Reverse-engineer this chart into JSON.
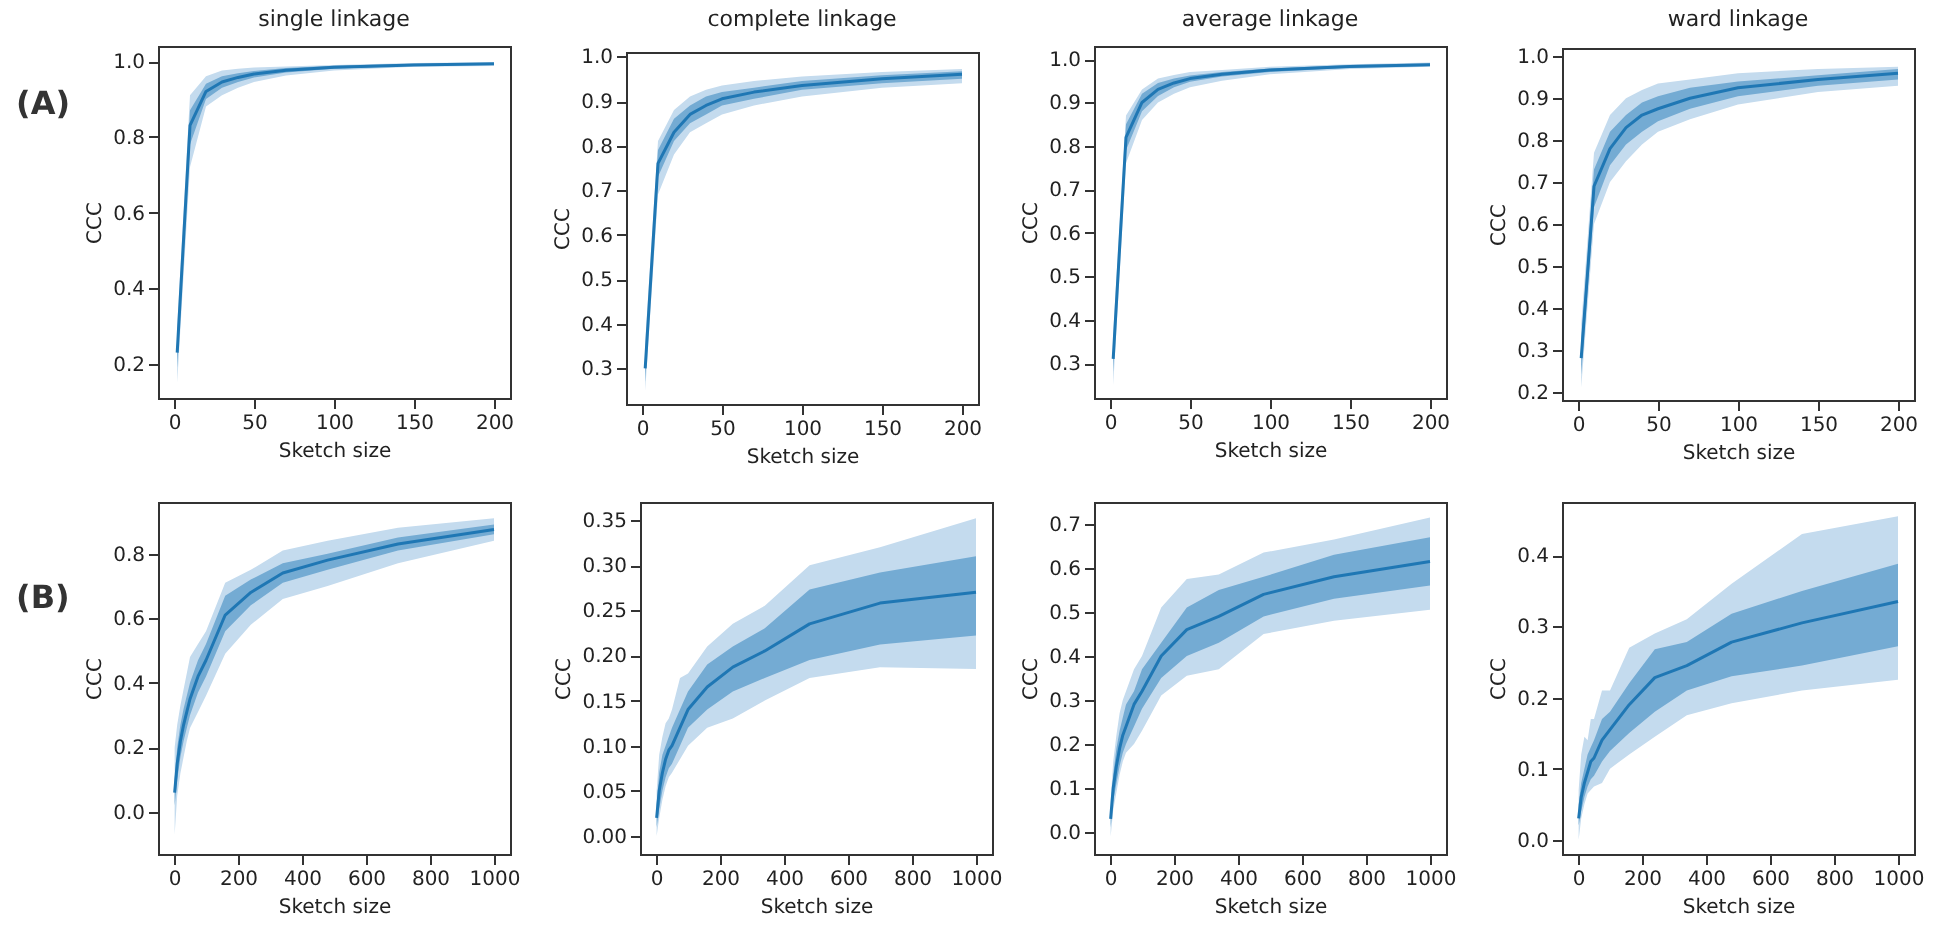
{
  "chart_data": [
    {
      "type": "line",
      "title": "single linkage",
      "xlabel": "Sketch size",
      "ylabel": "CCC",
      "annotations": [
        "(A)"
      ],
      "x": [
        2,
        10,
        20,
        30,
        40,
        50,
        70,
        100,
        150,
        200
      ],
      "xlim": [
        -10,
        210
      ],
      "xticks": [
        0,
        50,
        100,
        150,
        200
      ],
      "ylim": [
        0.11,
        1.04
      ],
      "yticks": [
        0.2,
        0.4,
        0.6,
        0.8,
        {
          "value": 1,
          "label": "1.0"
        }
      ],
      "series": [
        {
          "color": "#c4dbee",
          "values": [
            null,
            null,
            null,
            null,
            null,
            null,
            null,
            null,
            null,
            null
          ],
          "lower": [
            0.15,
            0.72,
            0.88,
            0.91,
            0.93,
            0.945,
            0.962,
            0.975,
            0.985,
            0.987
          ],
          "upper": [
            0.3,
            0.91,
            0.96,
            0.975,
            0.98,
            0.983,
            0.986,
            0.99,
            0.995,
            0.997
          ]
        },
        {
          "color": "#74abd3",
          "values": [
            null,
            null,
            null,
            null,
            null,
            null,
            null,
            null,
            null,
            null
          ],
          "lower": [
            0.19,
            0.78,
            0.9,
            0.93,
            0.945,
            0.957,
            0.97,
            0.98,
            0.988,
            0.99
          ],
          "upper": [
            0.27,
            0.87,
            0.94,
            0.96,
            0.968,
            0.974,
            0.982,
            0.988,
            0.993,
            0.995
          ]
        },
        {
          "color": "#1f77b4",
          "values": [
            0.23,
            0.83,
            0.92,
            0.945,
            0.957,
            0.966,
            0.976,
            0.984,
            0.99,
            0.993
          ]
        }
      ]
    },
    {
      "type": "line",
      "title": "complete linkage",
      "xlabel": "Sketch size",
      "ylabel": "CCC",
      "x": [
        2,
        10,
        20,
        30,
        40,
        50,
        70,
        100,
        150,
        200
      ],
      "xlim": [
        -10,
        210
      ],
      "xticks": [
        0,
        50,
        100,
        150,
        200
      ],
      "ylim": [
        0.22,
        1.01
      ],
      "yticks": [
        0.3,
        0.4,
        0.5,
        0.6,
        0.7,
        0.8,
        0.9,
        {
          "value": 1,
          "label": "1.0"
        }
      ],
      "series": [
        {
          "color": "#c4dbee",
          "values": [
            null,
            null,
            null,
            null,
            null,
            null,
            null,
            null,
            null,
            null
          ],
          "lower": [
            0.25,
            0.69,
            0.78,
            0.83,
            0.85,
            0.87,
            0.89,
            0.91,
            0.93,
            0.94
          ],
          "upper": [
            0.36,
            0.81,
            0.88,
            0.91,
            0.925,
            0.935,
            0.945,
            0.955,
            0.965,
            0.972
          ]
        },
        {
          "color": "#74abd3",
          "values": [
            null,
            null,
            null,
            null,
            null,
            null,
            null,
            null,
            null,
            null
          ],
          "lower": [
            0.27,
            0.73,
            0.81,
            0.85,
            0.87,
            0.89,
            0.905,
            0.925,
            0.94,
            0.95
          ],
          "upper": [
            0.33,
            0.79,
            0.86,
            0.89,
            0.91,
            0.92,
            0.93,
            0.945,
            0.958,
            0.967
          ]
        },
        {
          "color": "#1f77b4",
          "values": [
            0.3,
            0.76,
            0.83,
            0.87,
            0.89,
            0.905,
            0.92,
            0.935,
            0.95,
            0.96
          ]
        }
      ]
    },
    {
      "type": "line",
      "title": "average linkage",
      "xlabel": "Sketch size",
      "ylabel": "CCC",
      "x": [
        2,
        10,
        20,
        30,
        40,
        50,
        70,
        100,
        150,
        200
      ],
      "xlim": [
        -10,
        210
      ],
      "xticks": [
        0,
        50,
        100,
        150,
        200
      ],
      "ylim": [
        0.22,
        1.03
      ],
      "yticks": [
        0.3,
        0.4,
        0.5,
        0.6,
        0.7,
        0.8,
        0.9,
        {
          "value": 1,
          "label": "1.0"
        }
      ],
      "series": [
        {
          "color": "#c4dbee",
          "values": [
            null,
            null,
            null,
            null,
            null,
            null,
            null,
            null,
            null,
            null
          ],
          "lower": [
            0.25,
            0.76,
            0.86,
            0.9,
            0.92,
            0.935,
            0.95,
            0.965,
            0.977,
            0.982
          ],
          "upper": [
            0.37,
            0.87,
            0.93,
            0.955,
            0.963,
            0.97,
            0.975,
            0.982,
            0.988,
            0.992
          ]
        },
        {
          "color": "#74abd3",
          "values": [
            null,
            null,
            null,
            null,
            null,
            null,
            null,
            null,
            null,
            null
          ],
          "lower": [
            0.28,
            0.79,
            0.88,
            0.915,
            0.935,
            0.948,
            0.96,
            0.97,
            0.98,
            0.984
          ],
          "upper": [
            0.34,
            0.85,
            0.92,
            0.945,
            0.955,
            0.962,
            0.97,
            0.978,
            0.986,
            0.99
          ]
        },
        {
          "color": "#1f77b4",
          "values": [
            0.31,
            0.82,
            0.9,
            0.93,
            0.945,
            0.955,
            0.965,
            0.975,
            0.983,
            0.987
          ]
        }
      ]
    },
    {
      "type": "line",
      "title": "ward linkage",
      "xlabel": "Sketch size",
      "ylabel": "CCC",
      "x": [
        2,
        10,
        20,
        30,
        40,
        50,
        70,
        100,
        150,
        200
      ],
      "xlim": [
        -10,
        210
      ],
      "xticks": [
        0,
        50,
        100,
        150,
        200
      ],
      "ylim": [
        0.18,
        1.02
      ],
      "yticks": [
        0.2,
        0.3,
        0.4,
        0.5,
        0.6,
        0.7,
        0.8,
        0.9,
        {
          "value": 1,
          "label": "1.0"
        }
      ],
      "series": [
        {
          "color": "#c4dbee",
          "values": [
            null,
            null,
            null,
            null,
            null,
            null,
            null,
            null,
            null,
            null
          ],
          "lower": [
            0.21,
            0.6,
            0.7,
            0.75,
            0.79,
            0.82,
            0.85,
            0.885,
            0.915,
            0.93
          ],
          "upper": [
            0.36,
            0.77,
            0.86,
            0.9,
            0.92,
            0.935,
            0.945,
            0.96,
            0.97,
            0.975
          ]
        },
        {
          "color": "#74abd3",
          "values": [
            null,
            null,
            null,
            null,
            null,
            null,
            null,
            null,
            null,
            null
          ],
          "lower": [
            0.24,
            0.64,
            0.74,
            0.79,
            0.82,
            0.845,
            0.875,
            0.905,
            0.93,
            0.945
          ],
          "upper": [
            0.32,
            0.73,
            0.82,
            0.86,
            0.89,
            0.905,
            0.925,
            0.94,
            0.955,
            0.97
          ]
        },
        {
          "color": "#1f77b4",
          "values": [
            0.28,
            0.69,
            0.78,
            0.83,
            0.86,
            0.875,
            0.9,
            0.925,
            0.945,
            0.96
          ]
        }
      ]
    },
    {
      "type": "line",
      "xlabel": "Sketch size",
      "ylabel": "CCC",
      "annotations": [
        "(B)"
      ],
      "x": [
        2,
        10,
        20,
        30,
        40,
        50,
        75,
        100,
        160,
        240,
        340,
        480,
        700,
        1000
      ],
      "xlim": [
        -50,
        1050
      ],
      "xticks": [
        0,
        200,
        400,
        600,
        800,
        1000
      ],
      "ylim": [
        -0.13,
        0.96
      ],
      "yticks": [
        {
          "value": 0,
          "label": "0.0"
        },
        0.2,
        0.4,
        0.6,
        0.8
      ],
      "series": [
        {
          "color": "#c4dbee",
          "values": [
            null,
            null,
            null,
            null,
            null,
            null,
            null,
            null,
            null,
            null,
            null,
            null,
            null,
            null
          ],
          "lower": [
            -0.07,
            0.05,
            0.12,
            0.17,
            0.22,
            0.26,
            0.31,
            0.36,
            0.49,
            0.58,
            0.66,
            0.7,
            0.77,
            0.84
          ],
          "upper": [
            0.2,
            0.27,
            0.33,
            0.38,
            0.43,
            0.48,
            0.52,
            0.56,
            0.71,
            0.75,
            0.81,
            0.84,
            0.88,
            0.91
          ]
        },
        {
          "color": "#74abd3",
          "values": [
            null,
            null,
            null,
            null,
            null,
            null,
            null,
            null,
            null,
            null,
            null,
            null,
            null,
            null
          ],
          "lower": [
            0.02,
            0.1,
            0.17,
            0.22,
            0.26,
            0.3,
            0.37,
            0.42,
            0.56,
            0.64,
            0.71,
            0.75,
            0.81,
            0.86
          ],
          "upper": [
            0.1,
            0.2,
            0.27,
            0.32,
            0.36,
            0.4,
            0.47,
            0.52,
            0.67,
            0.72,
            0.77,
            0.8,
            0.85,
            0.89
          ]
        },
        {
          "color": "#1f77b4",
          "values": [
            0.06,
            0.15,
            0.22,
            0.27,
            0.31,
            0.35,
            0.42,
            0.47,
            0.61,
            0.68,
            0.74,
            0.78,
            0.83,
            0.875
          ]
        }
      ]
    },
    {
      "type": "line",
      "xlabel": "Sketch size",
      "ylabel": "CCC",
      "x": [
        2,
        10,
        20,
        30,
        40,
        50,
        75,
        100,
        160,
        240,
        340,
        480,
        700,
        1000
      ],
      "xlim": [
        -50,
        1050
      ],
      "xticks": [
        0,
        200,
        400,
        600,
        800,
        1000
      ],
      "ylim": [
        -0.02,
        0.37
      ],
      "yticks": [
        {
          "value": 0,
          "label": "0.00"
        },
        0.05,
        {
          "value": 0.1,
          "label": "0.10"
        },
        0.15,
        {
          "value": 0.2,
          "label": "0.20"
        },
        0.25,
        {
          "value": 0.3,
          "label": "0.30"
        },
        0.35
      ],
      "series": [
        {
          "color": "#c4dbee",
          "values": [
            null,
            null,
            null,
            null,
            null,
            null,
            null,
            null,
            null,
            null,
            null,
            null,
            null,
            null
          ],
          "lower": [
            0.0,
            0.02,
            0.04,
            0.055,
            0.065,
            0.07,
            0.085,
            0.1,
            0.12,
            0.13,
            0.15,
            0.175,
            0.187,
            0.185
          ],
          "upper": [
            0.05,
            0.09,
            0.11,
            0.125,
            0.13,
            0.14,
            0.175,
            0.18,
            0.21,
            0.235,
            0.255,
            0.3,
            0.32,
            0.352
          ]
        },
        {
          "color": "#74abd3",
          "values": [
            null,
            null,
            null,
            null,
            null,
            null,
            null,
            null,
            null,
            null,
            null,
            null,
            null,
            null
          ],
          "lower": [
            0.01,
            0.03,
            0.05,
            0.065,
            0.075,
            0.08,
            0.1,
            0.12,
            0.14,
            0.16,
            0.175,
            0.195,
            0.212,
            0.222
          ],
          "upper": [
            0.035,
            0.07,
            0.09,
            0.1,
            0.11,
            0.12,
            0.14,
            0.16,
            0.19,
            0.21,
            0.23,
            0.273,
            0.292,
            0.31
          ]
        },
        {
          "color": "#1f77b4",
          "values": [
            0.02,
            0.05,
            0.07,
            0.085,
            0.095,
            0.1,
            0.12,
            0.14,
            0.165,
            0.187,
            0.205,
            0.235,
            0.258,
            0.27
          ]
        }
      ]
    },
    {
      "type": "line",
      "xlabel": "Sketch size",
      "ylabel": "CCC",
      "x": [
        2,
        10,
        20,
        30,
        40,
        50,
        75,
        100,
        160,
        240,
        340,
        480,
        700,
        1000
      ],
      "xlim": [
        -50,
        1050
      ],
      "xticks": [
        0,
        200,
        400,
        600,
        800,
        1000
      ],
      "ylim": [
        -0.05,
        0.75
      ],
      "yticks": [
        {
          "value": 0,
          "label": "0.0"
        },
        0.1,
        0.2,
        0.3,
        0.4,
        0.5,
        0.6,
        0.7
      ],
      "series": [
        {
          "color": "#c4dbee",
          "values": [
            null,
            null,
            null,
            null,
            null,
            null,
            null,
            null,
            null,
            null,
            null,
            null,
            null,
            null
          ],
          "lower": [
            -0.01,
            0.05,
            0.09,
            0.13,
            0.16,
            0.18,
            0.2,
            0.23,
            0.31,
            0.355,
            0.37,
            0.45,
            0.48,
            0.505
          ],
          "upper": [
            0.07,
            0.16,
            0.22,
            0.27,
            0.3,
            0.32,
            0.37,
            0.4,
            0.51,
            0.575,
            0.585,
            0.635,
            0.665,
            0.715
          ]
        },
        {
          "color": "#74abd3",
          "values": [
            null,
            null,
            null,
            null,
            null,
            null,
            null,
            null,
            null,
            null,
            null,
            null,
            null,
            null
          ],
          "lower": [
            0.01,
            0.07,
            0.11,
            0.15,
            0.18,
            0.2,
            0.24,
            0.28,
            0.35,
            0.4,
            0.43,
            0.49,
            0.53,
            0.56
          ],
          "upper": [
            0.05,
            0.13,
            0.19,
            0.23,
            0.26,
            0.29,
            0.32,
            0.37,
            0.43,
            0.51,
            0.55,
            0.58,
            0.63,
            0.67
          ]
        },
        {
          "color": "#1f77b4",
          "values": [
            0.03,
            0.1,
            0.15,
            0.19,
            0.22,
            0.24,
            0.29,
            0.32,
            0.4,
            0.46,
            0.49,
            0.54,
            0.58,
            0.615
          ]
        }
      ]
    },
    {
      "type": "line",
      "xlabel": "Sketch size",
      "ylabel": "CCC",
      "x": [
        2,
        10,
        20,
        30,
        40,
        50,
        75,
        100,
        160,
        240,
        340,
        480,
        700,
        1000
      ],
      "xlim": [
        -50,
        1050
      ],
      "xticks": [
        0,
        200,
        400,
        600,
        800,
        1000
      ],
      "ylim": [
        -0.02,
        0.475
      ],
      "yticks": [
        {
          "value": 0,
          "label": "0.0"
        },
        0.1,
        0.2,
        0.3,
        0.4
      ],
      "series": [
        {
          "color": "#c4dbee",
          "values": [
            null,
            null,
            null,
            null,
            null,
            null,
            null,
            null,
            null,
            null,
            null,
            null,
            null,
            null
          ],
          "lower": [
            0.0,
            0.03,
            0.05,
            0.065,
            0.07,
            0.075,
            0.08,
            0.1,
            0.12,
            0.145,
            0.175,
            0.192,
            0.21,
            0.225
          ],
          "upper": [
            0.07,
            0.12,
            0.145,
            0.14,
            0.17,
            0.17,
            0.21,
            0.21,
            0.27,
            0.29,
            0.31,
            0.36,
            0.43,
            0.455
          ]
        },
        {
          "color": "#74abd3",
          "values": [
            null,
            null,
            null,
            null,
            null,
            null,
            null,
            null,
            null,
            null,
            null,
            null,
            null,
            null
          ],
          "lower": [
            0.02,
            0.04,
            0.06,
            0.075,
            0.085,
            0.09,
            0.11,
            0.125,
            0.15,
            0.18,
            0.21,
            0.23,
            0.245,
            0.272
          ],
          "upper": [
            0.05,
            0.08,
            0.1,
            0.12,
            0.13,
            0.14,
            0.17,
            0.18,
            0.22,
            0.268,
            0.278,
            0.318,
            0.35,
            0.388
          ]
        },
        {
          "color": "#1f77b4",
          "values": [
            0.03,
            0.06,
            0.08,
            0.095,
            0.11,
            0.115,
            0.14,
            0.155,
            0.19,
            0.228,
            0.245,
            0.278,
            0.305,
            0.335
          ]
        }
      ]
    }
  ]
}
